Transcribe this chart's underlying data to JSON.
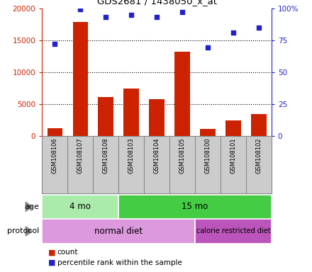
{
  "title": "GDS2681 / 1438050_x_at",
  "samples": [
    "GSM108106",
    "GSM108107",
    "GSM108108",
    "GSM108103",
    "GSM108104",
    "GSM108105",
    "GSM108100",
    "GSM108101",
    "GSM108102"
  ],
  "counts": [
    1200,
    17800,
    6100,
    7400,
    5800,
    13200,
    1100,
    2400,
    3400
  ],
  "percentile_ranks": [
    72,
    99,
    93,
    95,
    93,
    97,
    69,
    81,
    85
  ],
  "ylim_left": [
    0,
    20000
  ],
  "ylim_right": [
    0,
    100
  ],
  "yticks_left": [
    0,
    5000,
    10000,
    15000,
    20000
  ],
  "yticks_right": [
    0,
    25,
    50,
    75,
    100
  ],
  "ytick_right_labels": [
    "0",
    "25",
    "50",
    "75",
    "100%"
  ],
  "bar_color": "#cc2200",
  "dot_color": "#2222cc",
  "age_groups": [
    {
      "label": "4 mo",
      "start": 0,
      "end": 3,
      "color": "#aaeaaa"
    },
    {
      "label": "15 mo",
      "start": 3,
      "end": 9,
      "color": "#44cc44"
    }
  ],
  "protocol_groups": [
    {
      "label": "normal diet",
      "start": 0,
      "end": 6,
      "color": "#dd99dd"
    },
    {
      "label": "calorie restricted diet",
      "start": 6,
      "end": 9,
      "color": "#bb55bb"
    }
  ],
  "legend_count_label": "count",
  "legend_pct_label": "percentile rank within the sample",
  "age_label": "age",
  "protocol_label": "protocol",
  "background_color": "#ffffff",
  "tick_color_left": "#cc2200",
  "tick_color_right": "#2222cc",
  "grid_color": "#000000",
  "sample_bg_color": "#cccccc",
  "arrow_color": "#888888",
  "border_color": "#888888"
}
